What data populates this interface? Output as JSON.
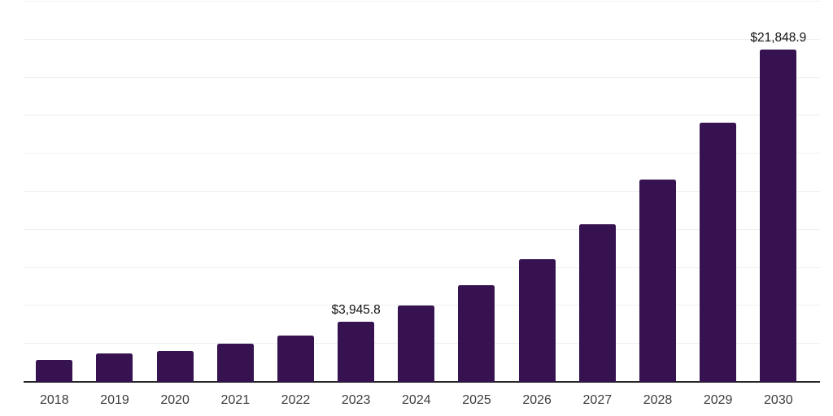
{
  "chart_data": {
    "type": "bar",
    "title": "",
    "xlabel": "",
    "ylabel": "",
    "categories": [
      "2018",
      "2019",
      "2020",
      "2021",
      "2022",
      "2023",
      "2024",
      "2025",
      "2026",
      "2027",
      "2028",
      "2029",
      "2030"
    ],
    "values": [
      1460,
      1870,
      2010,
      2520,
      3060,
      3945.8,
      5020,
      6360,
      8090,
      10360,
      13300,
      17040,
      21848.9
    ],
    "bar_labels": [
      "",
      "",
      "",
      "",
      "",
      "$3,945.8",
      "",
      "",
      "",
      "",
      "",
      "",
      "$21,848.9"
    ],
    "labeled_points": [
      {
        "category": "2023",
        "label": "$3,945.8"
      },
      {
        "category": "2030",
        "label": "$21,848.9"
      }
    ],
    "ylim": [
      0,
      25000
    ],
    "gridline_step": 2500,
    "grid": true,
    "legend": "none",
    "y_axis_labels_visible": false,
    "colors": {
      "bar": "#361250",
      "gridline": "#efefef",
      "axis_line": "#262626",
      "tick_label": "#3c3c3c",
      "data_label": "#111111",
      "background": "#ffffff"
    }
  }
}
